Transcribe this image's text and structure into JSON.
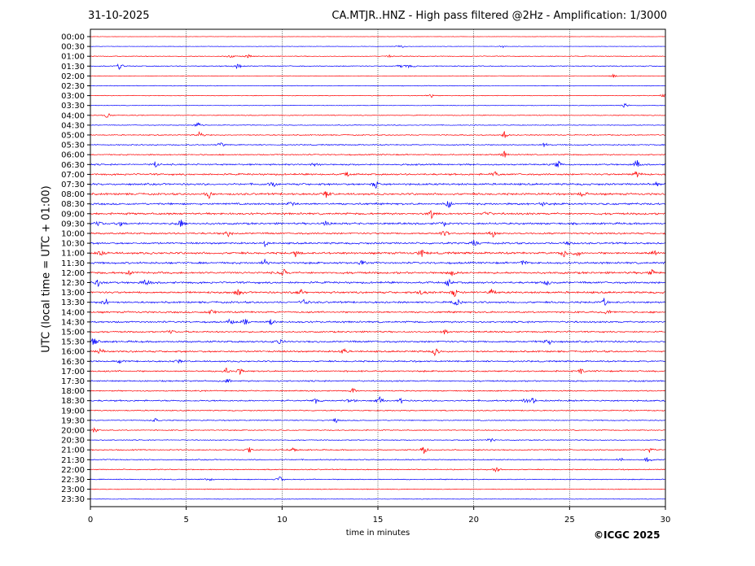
{
  "header": {
    "date": "31-10-2025",
    "title": "CA.MTJR..HNZ - High pass filtered @2Hz - Amplification: 1/3000"
  },
  "footer": {
    "credit": "©ICGC 2025"
  },
  "chart_data": {
    "type": "line",
    "title": "CA.MTJR..HNZ - High pass filtered @2Hz - Amplification: 1/3000",
    "xlabel": "time in minutes",
    "ylabel": "UTC (local time = UTC + 01:00)",
    "xlim": [
      0,
      30
    ],
    "xticks": [
      0,
      5,
      10,
      15,
      20,
      25,
      30
    ],
    "vertical_gridlines_at": [
      5,
      10,
      15,
      20,
      25
    ],
    "row_labels": [
      "00:00",
      "00:30",
      "01:00",
      "01:30",
      "02:00",
      "02:30",
      "03:00",
      "03:30",
      "04:00",
      "04:30",
      "05:00",
      "05:30",
      "06:00",
      "06:30",
      "07:00",
      "07:30",
      "08:00",
      "08:30",
      "09:00",
      "09:30",
      "10:00",
      "10:30",
      "11:00",
      "11:30",
      "12:00",
      "12:30",
      "13:00",
      "13:30",
      "14:00",
      "14:30",
      "15:00",
      "15:30",
      "16:00",
      "16:30",
      "17:00",
      "17:30",
      "18:00",
      "18:30",
      "19:00",
      "19:30",
      "20:00",
      "20:30",
      "21:00",
      "21:30",
      "22:00",
      "22:30",
      "23:00",
      "23:30"
    ],
    "row_colors": [
      "#ff0000",
      "#0000ff"
    ],
    "noise_level": [
      0.15,
      0.2,
      0.35,
      0.45,
      0.25,
      0.3,
      0.3,
      0.25,
      0.35,
      0.35,
      0.45,
      0.5,
      0.55,
      0.7,
      0.8,
      0.9,
      0.9,
      0.9,
      0.9,
      0.9,
      0.8,
      0.85,
      0.95,
      0.9,
      0.95,
      0.9,
      0.9,
      0.85,
      0.8,
      0.8,
      0.7,
      0.85,
      0.8,
      0.7,
      0.7,
      0.65,
      0.55,
      0.7,
      0.5,
      0.45,
      0.45,
      0.4,
      0.5,
      0.5,
      0.45,
      0.45,
      0.35,
      0.25
    ],
    "events": [
      {
        "row": 1,
        "minute": 16.2,
        "amp": 4
      },
      {
        "row": 1,
        "minute": 21.5,
        "amp": 2
      },
      {
        "row": 2,
        "minute": 7.3,
        "amp": 3
      },
      {
        "row": 2,
        "minute": 8.2,
        "amp": 4
      },
      {
        "row": 2,
        "minute": 15.6,
        "amp": 2
      },
      {
        "row": 3,
        "minute": 1.5,
        "amp": 6
      },
      {
        "row": 3,
        "minute": 7.7,
        "amp": 5
      },
      {
        "row": 3,
        "minute": 16.2,
        "amp": 4
      },
      {
        "row": 3,
        "minute": 16.7,
        "amp": 4
      },
      {
        "row": 4,
        "minute": 27.3,
        "amp": 3
      },
      {
        "row": 6,
        "minute": 17.8,
        "amp": 3
      },
      {
        "row": 6,
        "minute": 29.9,
        "amp": 3
      },
      {
        "row": 7,
        "minute": 27.9,
        "amp": 5
      },
      {
        "row": 8,
        "minute": 0.9,
        "amp": 5
      },
      {
        "row": 9,
        "minute": 5.6,
        "amp": 7
      },
      {
        "row": 10,
        "minute": 5.7,
        "amp": 7
      },
      {
        "row": 10,
        "minute": 21.6,
        "amp": 6
      },
      {
        "row": 11,
        "minute": 6.8,
        "amp": 4
      },
      {
        "row": 11,
        "minute": 23.7,
        "amp": 4
      },
      {
        "row": 12,
        "minute": 21.6,
        "amp": 5
      },
      {
        "row": 13,
        "minute": 3.4,
        "amp": 5
      },
      {
        "row": 13,
        "minute": 11.7,
        "amp": 5
      },
      {
        "row": 13,
        "minute": 24.4,
        "amp": 6
      },
      {
        "row": 13,
        "minute": 28.5,
        "amp": 7
      },
      {
        "row": 14,
        "minute": 13.4,
        "amp": 4
      },
      {
        "row": 14,
        "minute": 21.1,
        "amp": 5
      },
      {
        "row": 14,
        "minute": 28.5,
        "amp": 6
      },
      {
        "row": 15,
        "minute": 9.5,
        "amp": 5
      },
      {
        "row": 15,
        "minute": 14.9,
        "amp": 6
      },
      {
        "row": 15,
        "minute": 29.5,
        "amp": 5
      },
      {
        "row": 16,
        "minute": 6.2,
        "amp": 6
      },
      {
        "row": 16,
        "minute": 12.3,
        "amp": 6
      },
      {
        "row": 16,
        "minute": 25.7,
        "amp": 5
      },
      {
        "row": 17,
        "minute": 10.5,
        "amp": 5
      },
      {
        "row": 17,
        "minute": 18.7,
        "amp": 6
      },
      {
        "row": 17,
        "minute": 23.6,
        "amp": 5
      },
      {
        "row": 18,
        "minute": 17.8,
        "amp": 6
      },
      {
        "row": 18,
        "minute": 20.7,
        "amp": 5
      },
      {
        "row": 19,
        "minute": 0.4,
        "amp": 5
      },
      {
        "row": 19,
        "minute": 1.6,
        "amp": 5
      },
      {
        "row": 19,
        "minute": 4.7,
        "amp": 6
      },
      {
        "row": 19,
        "minute": 12.3,
        "amp": 5
      },
      {
        "row": 19,
        "minute": 18.4,
        "amp": 6
      },
      {
        "row": 20,
        "minute": 7.2,
        "amp": 4
      },
      {
        "row": 20,
        "minute": 18.5,
        "amp": 5
      },
      {
        "row": 20,
        "minute": 21.0,
        "amp": 5
      },
      {
        "row": 21,
        "minute": 9.1,
        "amp": 5
      },
      {
        "row": 21,
        "minute": 20.0,
        "amp": 5
      },
      {
        "row": 21,
        "minute": 24.9,
        "amp": 5
      },
      {
        "row": 22,
        "minute": 0.6,
        "amp": 5
      },
      {
        "row": 22,
        "minute": 10.7,
        "amp": 5
      },
      {
        "row": 22,
        "minute": 17.3,
        "amp": 7
      },
      {
        "row": 22,
        "minute": 24.7,
        "amp": 7
      },
      {
        "row": 22,
        "minute": 25.4,
        "amp": 7
      },
      {
        "row": 22,
        "minute": 29.4,
        "amp": 5
      },
      {
        "row": 23,
        "minute": 9.1,
        "amp": 5
      },
      {
        "row": 23,
        "minute": 14.2,
        "amp": 4
      },
      {
        "row": 23,
        "minute": 22.6,
        "amp": 5
      },
      {
        "row": 24,
        "minute": 2.0,
        "amp": 5
      },
      {
        "row": 24,
        "minute": 10.1,
        "amp": 5
      },
      {
        "row": 24,
        "minute": 18.9,
        "amp": 5
      },
      {
        "row": 24,
        "minute": 29.3,
        "amp": 4
      },
      {
        "row": 25,
        "minute": 0.4,
        "amp": 5
      },
      {
        "row": 25,
        "minute": 2.9,
        "amp": 5
      },
      {
        "row": 25,
        "minute": 18.7,
        "amp": 7
      },
      {
        "row": 25,
        "minute": 23.8,
        "amp": 5
      },
      {
        "row": 26,
        "minute": 7.7,
        "amp": 5
      },
      {
        "row": 26,
        "minute": 11.0,
        "amp": 5
      },
      {
        "row": 26,
        "minute": 17.3,
        "amp": 6
      },
      {
        "row": 26,
        "minute": 19.0,
        "amp": 7
      },
      {
        "row": 26,
        "minute": 20.9,
        "amp": 5
      },
      {
        "row": 27,
        "minute": 0.8,
        "amp": 6
      },
      {
        "row": 27,
        "minute": 11.1,
        "amp": 5
      },
      {
        "row": 27,
        "minute": 19.1,
        "amp": 6
      },
      {
        "row": 27,
        "minute": 26.8,
        "amp": 6
      },
      {
        "row": 28,
        "minute": 6.3,
        "amp": 4
      },
      {
        "row": 28,
        "minute": 27.0,
        "amp": 6
      },
      {
        "row": 29,
        "minute": 7.3,
        "amp": 5
      },
      {
        "row": 29,
        "minute": 8.1,
        "amp": 6
      },
      {
        "row": 29,
        "minute": 9.4,
        "amp": 5
      },
      {
        "row": 30,
        "minute": 4.2,
        "amp": 4
      },
      {
        "row": 30,
        "minute": 18.5,
        "amp": 5
      },
      {
        "row": 31,
        "minute": 0.2,
        "amp": 7
      },
      {
        "row": 31,
        "minute": 9.8,
        "amp": 5
      },
      {
        "row": 31,
        "minute": 23.9,
        "amp": 6
      },
      {
        "row": 32,
        "minute": 0.5,
        "amp": 5
      },
      {
        "row": 32,
        "minute": 13.2,
        "amp": 5
      },
      {
        "row": 32,
        "minute": 18.0,
        "amp": 7
      },
      {
        "row": 33,
        "minute": 1.6,
        "amp": 4
      },
      {
        "row": 33,
        "minute": 4.6,
        "amp": 4
      },
      {
        "row": 34,
        "minute": 7.1,
        "amp": 5
      },
      {
        "row": 34,
        "minute": 7.8,
        "amp": 4
      },
      {
        "row": 34,
        "minute": 25.6,
        "amp": 4
      },
      {
        "row": 35,
        "minute": 7.2,
        "amp": 4
      },
      {
        "row": 36,
        "minute": 13.7,
        "amp": 5
      },
      {
        "row": 37,
        "minute": 11.8,
        "amp": 5
      },
      {
        "row": 37,
        "minute": 13.6,
        "amp": 5
      },
      {
        "row": 37,
        "minute": 15.1,
        "amp": 5
      },
      {
        "row": 37,
        "minute": 16.2,
        "amp": 4
      },
      {
        "row": 37,
        "minute": 22.7,
        "amp": 4
      },
      {
        "row": 37,
        "minute": 23.1,
        "amp": 5
      },
      {
        "row": 39,
        "minute": 3.4,
        "amp": 4
      },
      {
        "row": 39,
        "minute": 12.8,
        "amp": 4
      },
      {
        "row": 40,
        "minute": 0.2,
        "amp": 5
      },
      {
        "row": 41,
        "minute": 20.9,
        "amp": 4
      },
      {
        "row": 42,
        "minute": 8.3,
        "amp": 5
      },
      {
        "row": 42,
        "minute": 10.6,
        "amp": 4
      },
      {
        "row": 42,
        "minute": 17.4,
        "amp": 6
      },
      {
        "row": 42,
        "minute": 29.2,
        "amp": 5
      },
      {
        "row": 43,
        "minute": 27.6,
        "amp": 4
      },
      {
        "row": 43,
        "minute": 29.1,
        "amp": 5
      },
      {
        "row": 44,
        "minute": 21.2,
        "amp": 5
      },
      {
        "row": 45,
        "minute": 9.9,
        "amp": 5
      },
      {
        "row": 45,
        "minute": 6.2,
        "amp": 3
      }
    ]
  }
}
